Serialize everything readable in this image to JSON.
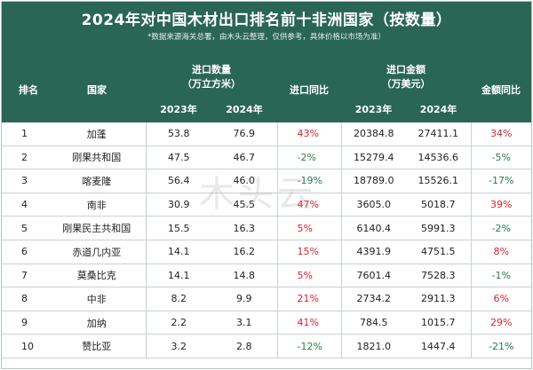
{
  "title": "2024年对中国木材出口排名前十非洲国家（按数量）",
  "subtitle": "*数据来源海关总署，由木头云整理，仅供参考，具体价格以市场为准）",
  "watermark": "木头云",
  "headers": {
    "rank": "排名",
    "country": "国家",
    "volume_group": "进口数量",
    "volume_unit": "（万立方米）",
    "volume_yoy": "进口同比",
    "amount_group": "进口金额",
    "amount_unit": "（万美元）",
    "amount_yoy": "金额同比",
    "year_2023": "2023年",
    "year_2024": "2024年"
  },
  "rows": [
    {
      "rank": "1",
      "country": "加蓬",
      "v2023": "53.8",
      "v2024": "76.9",
      "vyoy": "43%",
      "vdir": "up",
      "a2023": "20384.8",
      "a2024": "27411.1",
      "ayoy": "34%",
      "adir": "up"
    },
    {
      "rank": "2",
      "country": "刚果共和国",
      "v2023": "47.5",
      "v2024": "46.7",
      "vyoy": "-2%",
      "vdir": "down",
      "a2023": "15279.4",
      "a2024": "14536.6",
      "ayoy": "-5%",
      "adir": "down"
    },
    {
      "rank": "3",
      "country": "喀麦隆",
      "v2023": "56.4",
      "v2024": "46.0",
      "vyoy": "-19%",
      "vdir": "down",
      "a2023": "18789.0",
      "a2024": "15526.1",
      "ayoy": "-17%",
      "adir": "down"
    },
    {
      "rank": "4",
      "country": "南非",
      "v2023": "30.9",
      "v2024": "45.5",
      "vyoy": "47%",
      "vdir": "up",
      "a2023": "3605.0",
      "a2024": "5018.7",
      "ayoy": "39%",
      "adir": "up"
    },
    {
      "rank": "5",
      "country": "刚果民主共和国",
      "v2023": "15.5",
      "v2024": "16.3",
      "vyoy": "5%",
      "vdir": "up",
      "a2023": "6140.4",
      "a2024": "5991.3",
      "ayoy": "-2%",
      "adir": "down"
    },
    {
      "rank": "6",
      "country": "赤道几内亚",
      "v2023": "14.1",
      "v2024": "16.2",
      "vyoy": "15%",
      "vdir": "up",
      "a2023": "4391.9",
      "a2024": "4751.5",
      "ayoy": "8%",
      "adir": "up"
    },
    {
      "rank": "7",
      "country": "莫桑比克",
      "v2023": "14.1",
      "v2024": "14.8",
      "vyoy": "5%",
      "vdir": "up",
      "a2023": "7601.4",
      "a2024": "7528.3",
      "ayoy": "-1%",
      "adir": "down"
    },
    {
      "rank": "8",
      "country": "中非",
      "v2023": "8.2",
      "v2024": "9.9",
      "vyoy": "21%",
      "vdir": "up",
      "a2023": "2734.2",
      "a2024": "2911.3",
      "ayoy": "6%",
      "adir": "up"
    },
    {
      "rank": "9",
      "country": "加纳",
      "v2023": "2.2",
      "v2024": "3.1",
      "vyoy": "41%",
      "vdir": "up",
      "a2023": "784.5",
      "a2024": "1015.7",
      "ayoy": "29%",
      "adir": "up"
    },
    {
      "rank": "10",
      "country": "赞比亚",
      "v2023": "3.2",
      "v2024": "2.8",
      "vyoy": "-12%",
      "vdir": "down",
      "a2023": "1821.0",
      "a2024": "1447.4",
      "ayoy": "-21%",
      "adir": "down"
    }
  ],
  "colors": {
    "header_bg": "#2a6654",
    "increase": "#d9232a",
    "decrease": "#2a7a4f"
  }
}
